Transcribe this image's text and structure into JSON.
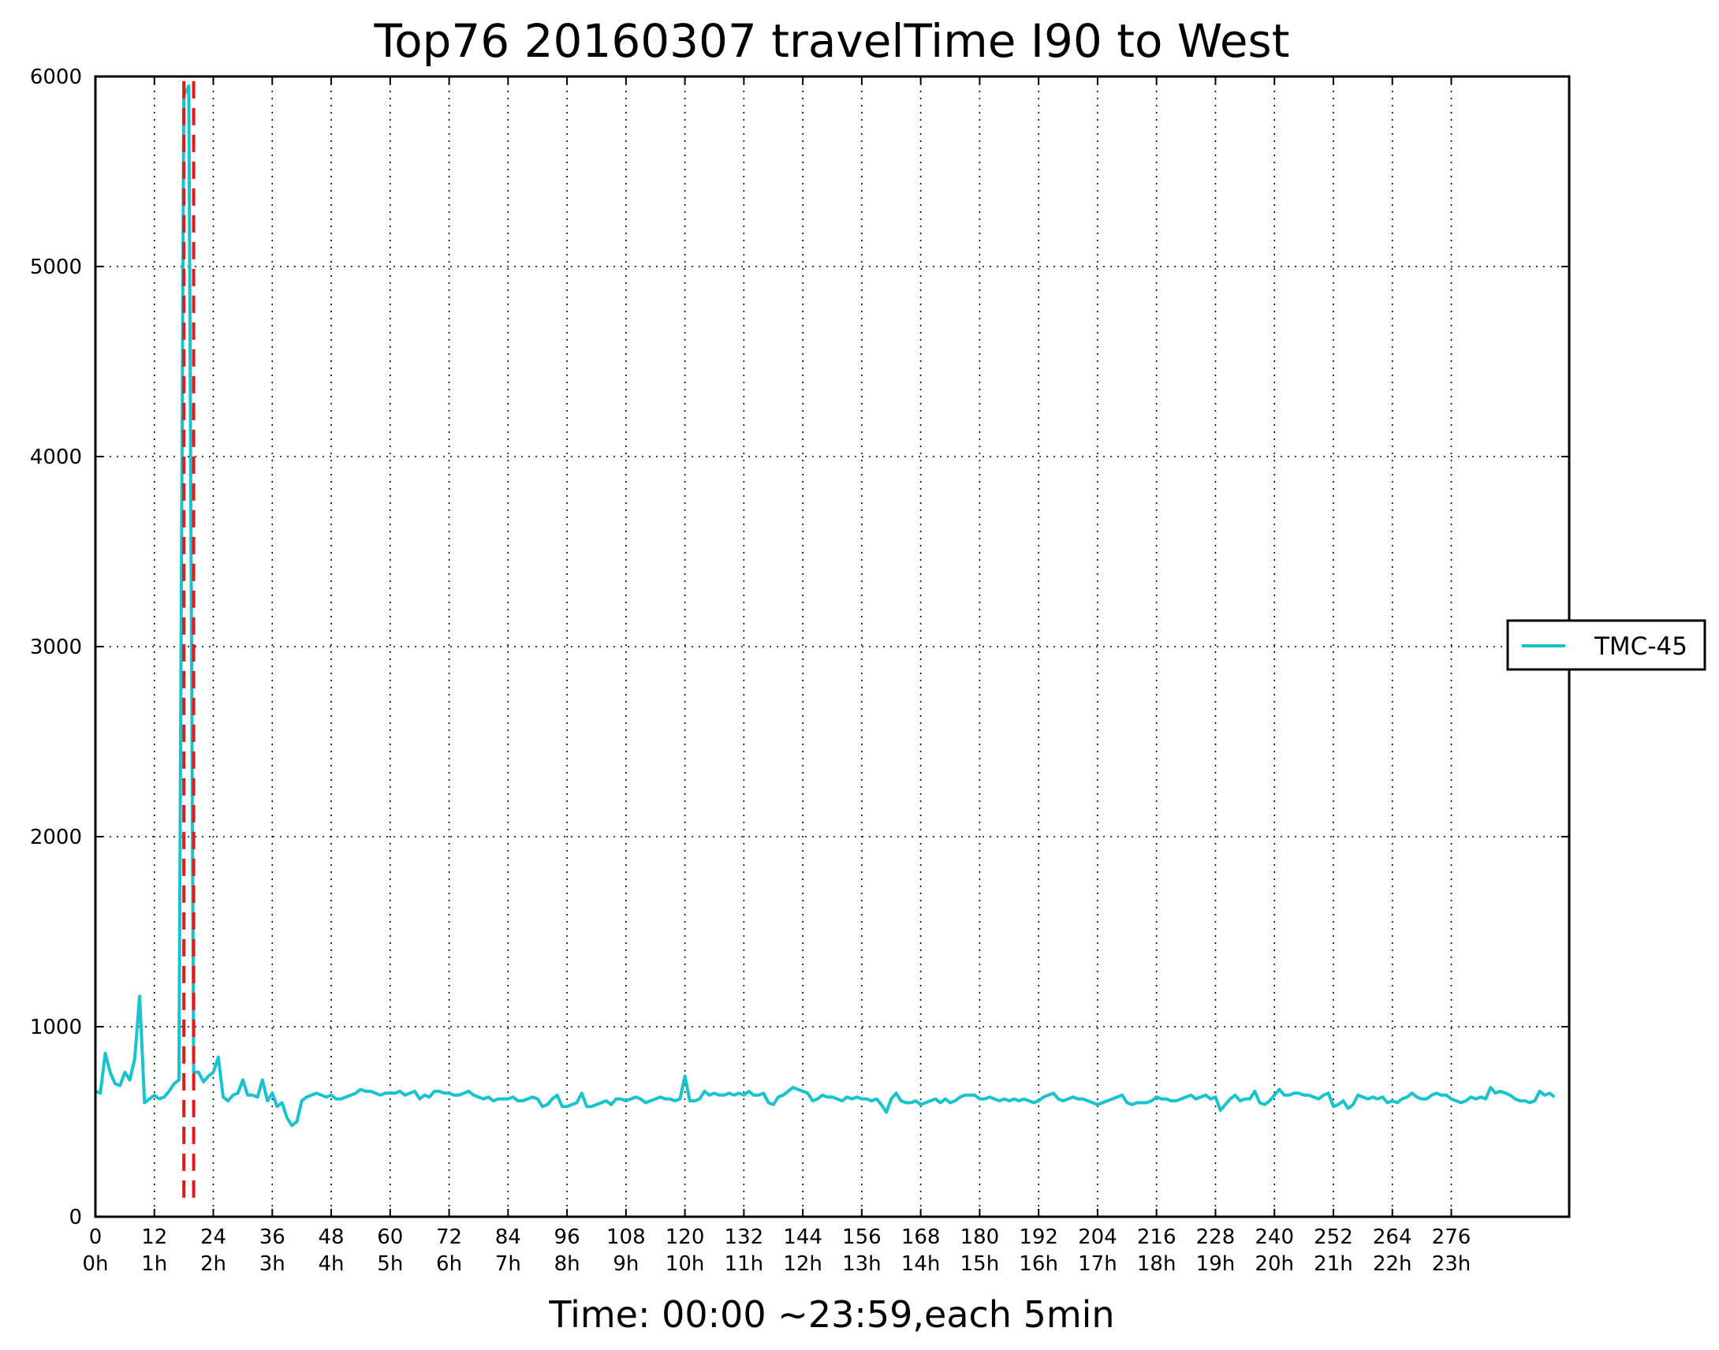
{
  "chart_data": {
    "type": "line",
    "title": "Top76 20160307 travelTime I90 to West",
    "xlabel": "Time: 00:00 ~23:59,each 5min",
    "ylabel": "",
    "xlim": [
      0,
      300
    ],
    "ylim": [
      0,
      6000
    ],
    "grid": true,
    "legend_position": "outside-right",
    "x_ticks": [
      0,
      12,
      24,
      36,
      48,
      60,
      72,
      84,
      96,
      108,
      120,
      132,
      144,
      156,
      168,
      180,
      192,
      204,
      216,
      228,
      240,
      252,
      264,
      276
    ],
    "x_tick_labels": [
      "0",
      "12",
      "24",
      "36",
      "48",
      "60",
      "72",
      "84",
      "96",
      "108",
      "120",
      "132",
      "144",
      "156",
      "168",
      "180",
      "192",
      "204",
      "216",
      "228",
      "240",
      "252",
      "264",
      "276"
    ],
    "x_tick_hours": [
      "0h",
      "1h",
      "2h",
      "3h",
      "4h",
      "5h",
      "6h",
      "7h",
      "8h",
      "9h",
      "10h",
      "11h",
      "12h",
      "13h",
      "14h",
      "15h",
      "16h",
      "17h",
      "18h",
      "19h",
      "20h",
      "21h",
      "22h",
      "23h"
    ],
    "y_ticks": [
      0,
      1000,
      2000,
      3000,
      4000,
      5000,
      6000
    ],
    "y_tick_labels": [
      "0",
      "1000",
      "2000",
      "3000",
      "4000",
      "5000",
      "6000"
    ],
    "markers": [
      {
        "type": "vline",
        "x": 18,
        "y_range": [
          100,
          6000
        ],
        "color": "#e31a1c",
        "style": "dashed"
      },
      {
        "type": "vline",
        "x": 20,
        "y_range": [
          100,
          6000
        ],
        "color": "#e31a1c",
        "style": "dashed"
      }
    ],
    "series": [
      {
        "name": "TMC-45",
        "color": "#17c3cc",
        "values": [
          660,
          650,
          860,
          760,
          700,
          690,
          760,
          720,
          830,
          1160,
          600,
          620,
          640,
          620,
          630,
          660,
          700,
          720,
          5900,
          5950,
          760,
          760,
          710,
          740,
          760,
          840,
          630,
          610,
          640,
          650,
          720,
          640,
          640,
          630,
          720,
          610,
          650,
          580,
          600,
          520,
          480,
          500,
          610,
          630,
          640,
          650,
          640,
          630,
          640,
          620,
          620,
          630,
          640,
          650,
          670,
          660,
          660,
          650,
          640,
          650,
          650,
          650,
          660,
          640,
          650,
          660,
          620,
          640,
          630,
          660,
          660,
          650,
          650,
          640,
          640,
          650,
          660,
          640,
          630,
          620,
          630,
          610,
          620,
          620,
          620,
          630,
          610,
          610,
          620,
          630,
          620,
          580,
          590,
          620,
          640,
          580,
          580,
          590,
          600,
          650,
          580,
          580,
          590,
          600,
          610,
          590,
          620,
          620,
          610,
          620,
          630,
          620,
          600,
          610,
          620,
          630,
          620,
          620,
          610,
          620,
          740,
          610,
          610,
          620,
          660,
          640,
          650,
          640,
          640,
          650,
          640,
          650,
          640,
          660,
          640,
          640,
          650,
          600,
          590,
          630,
          640,
          660,
          680,
          670,
          660,
          650,
          610,
          620,
          640,
          630,
          630,
          620,
          610,
          630,
          620,
          630,
          620,
          620,
          610,
          620,
          590,
          550,
          620,
          650,
          610,
          600,
          600,
          610,
          590,
          600,
          610,
          620,
          600,
          620,
          600,
          610,
          630,
          640,
          640,
          640,
          620,
          620,
          630,
          620,
          610,
          620,
          610,
          620,
          610,
          620,
          610,
          600,
          610,
          630,
          640,
          650,
          620,
          610,
          620,
          630,
          620,
          620,
          610,
          600,
          590,
          600,
          610,
          620,
          630,
          640,
          600,
          590,
          600,
          600,
          600,
          610,
          630,
          620,
          620,
          610,
          610,
          620,
          630,
          640,
          620,
          630,
          640,
          620,
          630,
          560,
          590,
          620,
          640,
          610,
          620,
          620,
          660,
          600,
          590,
          610,
          640,
          670,
          640,
          640,
          650,
          650,
          640,
          640,
          630,
          620,
          640,
          650,
          580,
          590,
          610,
          570,
          590,
          640,
          630,
          620,
          630,
          620,
          630,
          600,
          610,
          600,
          620,
          630,
          650,
          630,
          620,
          620,
          640,
          650,
          640,
          640,
          620,
          610,
          600,
          610,
          630,
          620,
          630,
          620,
          680,
          650,
          660,
          650,
          640,
          620,
          610,
          610,
          600,
          610,
          660,
          640,
          650,
          630
        ]
      }
    ]
  }
}
